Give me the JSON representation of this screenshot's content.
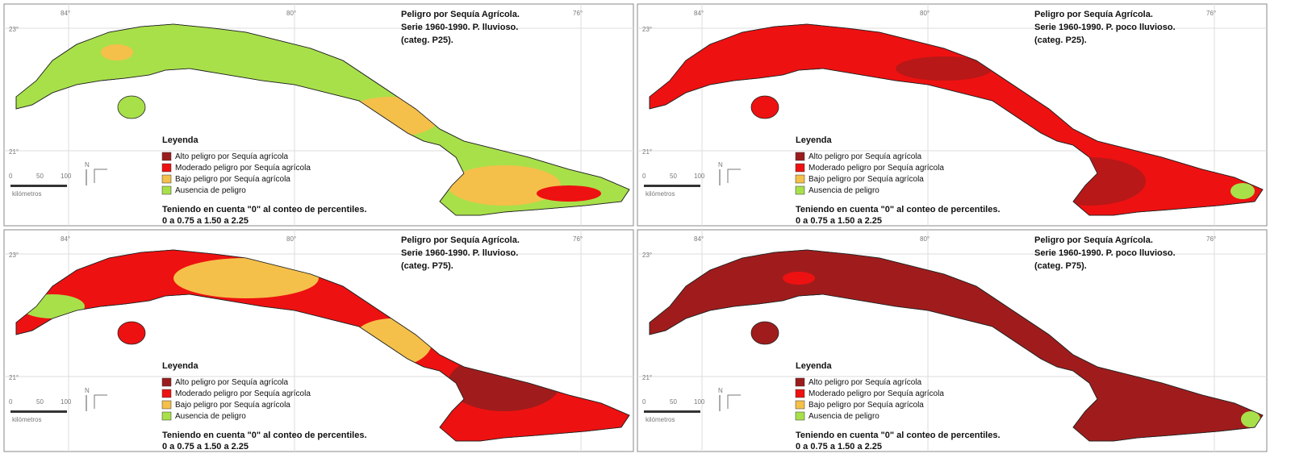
{
  "panels": [
    {
      "title": [
        "Peligro por Sequía Agrícola.",
        "Serie 1960-1990. P. lluvioso.",
        "(categ. P25)."
      ]
    },
    {
      "title": [
        "Peligro por Sequía Agrícola.",
        "Serie 1960-1990. P. poco lluvioso.",
        "(categ. P25)."
      ]
    },
    {
      "title": [
        "Peligro por Sequía Agrícola.",
        "Serie 1960-1990. P. lluvioso.",
        "(categ. P75)."
      ]
    },
    {
      "title": [
        "Peligro por Sequía Agrícola.",
        "Serie 1960-1990. P. poco lluvioso.",
        "(categ. P75)."
      ]
    }
  ],
  "legend": {
    "title": "Leyenda",
    "items": [
      {
        "label": "Alto peligro por Sequía agrícola",
        "color": "#9b1c1c"
      },
      {
        "label": "Moderado peligro por Sequía agrícola",
        "color": "#ee1111"
      },
      {
        "label": "Bajo peligro por Sequía agrícola",
        "color": "#f4c04a"
      },
      {
        "label": "Ausencia de peligro",
        "color": "#a8e04a"
      }
    ]
  },
  "note": [
    "Teniendo en cuenta \"0\" al conteo de percentiles.",
    "0 a 0.75 a 1.50 a 2.25"
  ],
  "scale": {
    "ticks": [
      "0",
      "50",
      "100"
    ],
    "unit": "kilómetros"
  },
  "north": "N",
  "graticule": {
    "lat": [
      "23°",
      "21°"
    ],
    "lon": [
      "84°",
      "80°",
      "76°"
    ]
  }
}
